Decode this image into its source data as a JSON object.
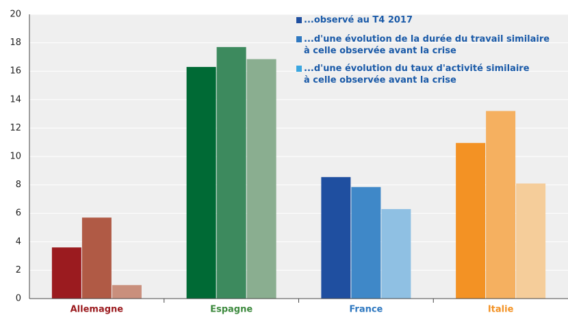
{
  "chart_data": {
    "type": "bar",
    "categories": [
      "Allemagne",
      "Espagne",
      "France",
      "Italie"
    ],
    "category_colors": [
      "#9b1b1f",
      "#3d8a3e",
      "#2f78c0",
      "#f39224"
    ],
    "series": [
      {
        "name": "...observé au T4 2017",
        "color": "#1f4fa0",
        "colors": [
          "#9b1b1f",
          "#006a35",
          "#1f4fa0",
          "#f39224"
        ],
        "values": [
          3.6,
          16.3,
          8.55,
          10.95
        ]
      },
      {
        "name": "...d'une évolution de la durée du travail similaire\nà celle observée avant la crise",
        "color": "#2f78c0",
        "colors": [
          "#b05a45",
          "#3d8a5e",
          "#3f88c8",
          "#f5b060"
        ],
        "values": [
          5.7,
          17.7,
          7.85,
          13.2
        ]
      },
      {
        "name": "...d'une évolution du taux d'activité similaire\nà celle observée avant la crise",
        "color": "#3aa6e0",
        "colors": [
          "#c98f7c",
          "#8aae90",
          "#8fc0e3",
          "#f5cd9a"
        ],
        "values": [
          0.95,
          16.85,
          6.3,
          8.1
        ]
      }
    ],
    "ylim": [
      0,
      20
    ],
    "yticks": [
      0,
      2,
      4,
      6,
      8,
      10,
      12,
      14,
      16,
      18,
      20
    ],
    "grid": true
  }
}
